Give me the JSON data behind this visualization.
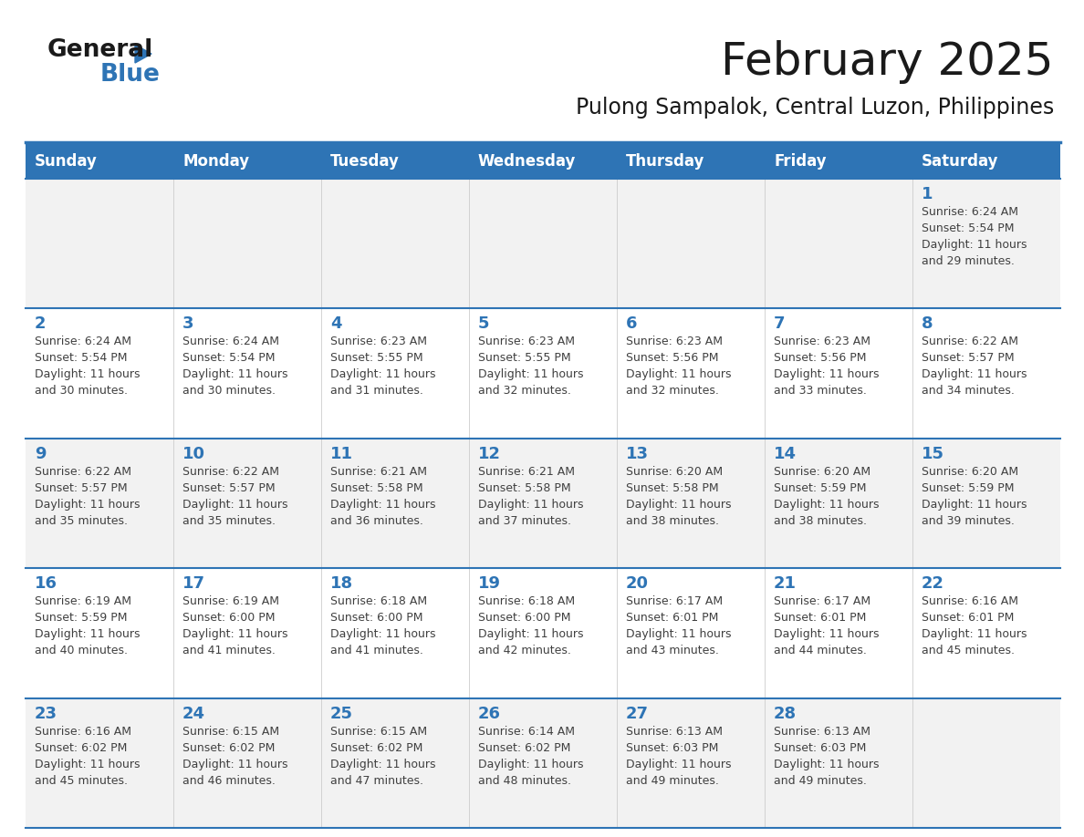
{
  "title": "February 2025",
  "subtitle": "Pulong Sampalok, Central Luzon, Philippines",
  "days_of_week": [
    "Sunday",
    "Monday",
    "Tuesday",
    "Wednesday",
    "Thursday",
    "Friday",
    "Saturday"
  ],
  "header_bg": "#2E74B5",
  "header_text": "#FFFFFF",
  "row_bg_light": "#F2F2F2",
  "row_bg_white": "#FFFFFF",
  "separator_color": "#2E74B5",
  "cell_text_color": "#404040",
  "day_number_color": "#2E74B5",
  "calendar_data": [
    [
      null,
      null,
      null,
      null,
      null,
      null,
      {
        "day": "1",
        "sunrise": "6:24 AM",
        "sunset": "5:54 PM",
        "daylight": "11 hours",
        "daylight2": "and 29 minutes."
      }
    ],
    [
      {
        "day": "2",
        "sunrise": "6:24 AM",
        "sunset": "5:54 PM",
        "daylight": "11 hours",
        "daylight2": "and 30 minutes."
      },
      {
        "day": "3",
        "sunrise": "6:24 AM",
        "sunset": "5:54 PM",
        "daylight": "11 hours",
        "daylight2": "and 30 minutes."
      },
      {
        "day": "4",
        "sunrise": "6:23 AM",
        "sunset": "5:55 PM",
        "daylight": "11 hours",
        "daylight2": "and 31 minutes."
      },
      {
        "day": "5",
        "sunrise": "6:23 AM",
        "sunset": "5:55 PM",
        "daylight": "11 hours",
        "daylight2": "and 32 minutes."
      },
      {
        "day": "6",
        "sunrise": "6:23 AM",
        "sunset": "5:56 PM",
        "daylight": "11 hours",
        "daylight2": "and 32 minutes."
      },
      {
        "day": "7",
        "sunrise": "6:23 AM",
        "sunset": "5:56 PM",
        "daylight": "11 hours",
        "daylight2": "and 33 minutes."
      },
      {
        "day": "8",
        "sunrise": "6:22 AM",
        "sunset": "5:57 PM",
        "daylight": "11 hours",
        "daylight2": "and 34 minutes."
      }
    ],
    [
      {
        "day": "9",
        "sunrise": "6:22 AM",
        "sunset": "5:57 PM",
        "daylight": "11 hours",
        "daylight2": "and 35 minutes."
      },
      {
        "day": "10",
        "sunrise": "6:22 AM",
        "sunset": "5:57 PM",
        "daylight": "11 hours",
        "daylight2": "and 35 minutes."
      },
      {
        "day": "11",
        "sunrise": "6:21 AM",
        "sunset": "5:58 PM",
        "daylight": "11 hours",
        "daylight2": "and 36 minutes."
      },
      {
        "day": "12",
        "sunrise": "6:21 AM",
        "sunset": "5:58 PM",
        "daylight": "11 hours",
        "daylight2": "and 37 minutes."
      },
      {
        "day": "13",
        "sunrise": "6:20 AM",
        "sunset": "5:58 PM",
        "daylight": "11 hours",
        "daylight2": "and 38 minutes."
      },
      {
        "day": "14",
        "sunrise": "6:20 AM",
        "sunset": "5:59 PM",
        "daylight": "11 hours",
        "daylight2": "and 38 minutes."
      },
      {
        "day": "15",
        "sunrise": "6:20 AM",
        "sunset": "5:59 PM",
        "daylight": "11 hours",
        "daylight2": "and 39 minutes."
      }
    ],
    [
      {
        "day": "16",
        "sunrise": "6:19 AM",
        "sunset": "5:59 PM",
        "daylight": "11 hours",
        "daylight2": "and 40 minutes."
      },
      {
        "day": "17",
        "sunrise": "6:19 AM",
        "sunset": "6:00 PM",
        "daylight": "11 hours",
        "daylight2": "and 41 minutes."
      },
      {
        "day": "18",
        "sunrise": "6:18 AM",
        "sunset": "6:00 PM",
        "daylight": "11 hours",
        "daylight2": "and 41 minutes."
      },
      {
        "day": "19",
        "sunrise": "6:18 AM",
        "sunset": "6:00 PM",
        "daylight": "11 hours",
        "daylight2": "and 42 minutes."
      },
      {
        "day": "20",
        "sunrise": "6:17 AM",
        "sunset": "6:01 PM",
        "daylight": "11 hours",
        "daylight2": "and 43 minutes."
      },
      {
        "day": "21",
        "sunrise": "6:17 AM",
        "sunset": "6:01 PM",
        "daylight": "11 hours",
        "daylight2": "and 44 minutes."
      },
      {
        "day": "22",
        "sunrise": "6:16 AM",
        "sunset": "6:01 PM",
        "daylight": "11 hours",
        "daylight2": "and 45 minutes."
      }
    ],
    [
      {
        "day": "23",
        "sunrise": "6:16 AM",
        "sunset": "6:02 PM",
        "daylight": "11 hours",
        "daylight2": "and 45 minutes."
      },
      {
        "day": "24",
        "sunrise": "6:15 AM",
        "sunset": "6:02 PM",
        "daylight": "11 hours",
        "daylight2": "and 46 minutes."
      },
      {
        "day": "25",
        "sunrise": "6:15 AM",
        "sunset": "6:02 PM",
        "daylight": "11 hours",
        "daylight2": "and 47 minutes."
      },
      {
        "day": "26",
        "sunrise": "6:14 AM",
        "sunset": "6:02 PM",
        "daylight": "11 hours",
        "daylight2": "and 48 minutes."
      },
      {
        "day": "27",
        "sunrise": "6:13 AM",
        "sunset": "6:03 PM",
        "daylight": "11 hours",
        "daylight2": "and 49 minutes."
      },
      {
        "day": "28",
        "sunrise": "6:13 AM",
        "sunset": "6:03 PM",
        "daylight": "11 hours",
        "daylight2": "and 49 minutes."
      },
      null
    ]
  ],
  "title_fontsize": 36,
  "subtitle_fontsize": 17,
  "header_fontsize": 12,
  "day_num_fontsize": 13,
  "cell_fontsize": 9
}
